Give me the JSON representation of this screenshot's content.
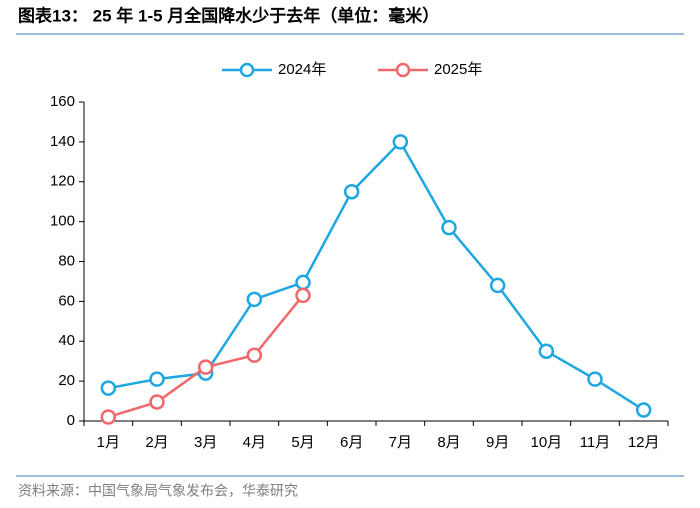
{
  "title": "图表13：  25 年 1-5 月全国降水少于去年（单位：毫米）",
  "source": "资料来源：中国气象局气象发布会，华泰研究",
  "chart_data": {
    "type": "line",
    "categories": [
      "1月",
      "2月",
      "3月",
      "4月",
      "5月",
      "6月",
      "7月",
      "8月",
      "9月",
      "10月",
      "11月",
      "12月"
    ],
    "series": [
      {
        "name": "2024年",
        "color": "#1fa7e1",
        "values": [
          16.5,
          21,
          24,
          61,
          69.5,
          115,
          140,
          97,
          68,
          35,
          21,
          5.5
        ]
      },
      {
        "name": "2025年",
        "color": "#f0686b",
        "values": [
          2,
          9.5,
          27,
          33,
          63,
          null,
          null,
          null,
          null,
          null,
          null,
          null
        ]
      }
    ],
    "ylim": [
      0,
      160
    ],
    "yticks": [
      0,
      20,
      40,
      60,
      80,
      100,
      120,
      140,
      160
    ],
    "legend": "top",
    "grid": false
  }
}
